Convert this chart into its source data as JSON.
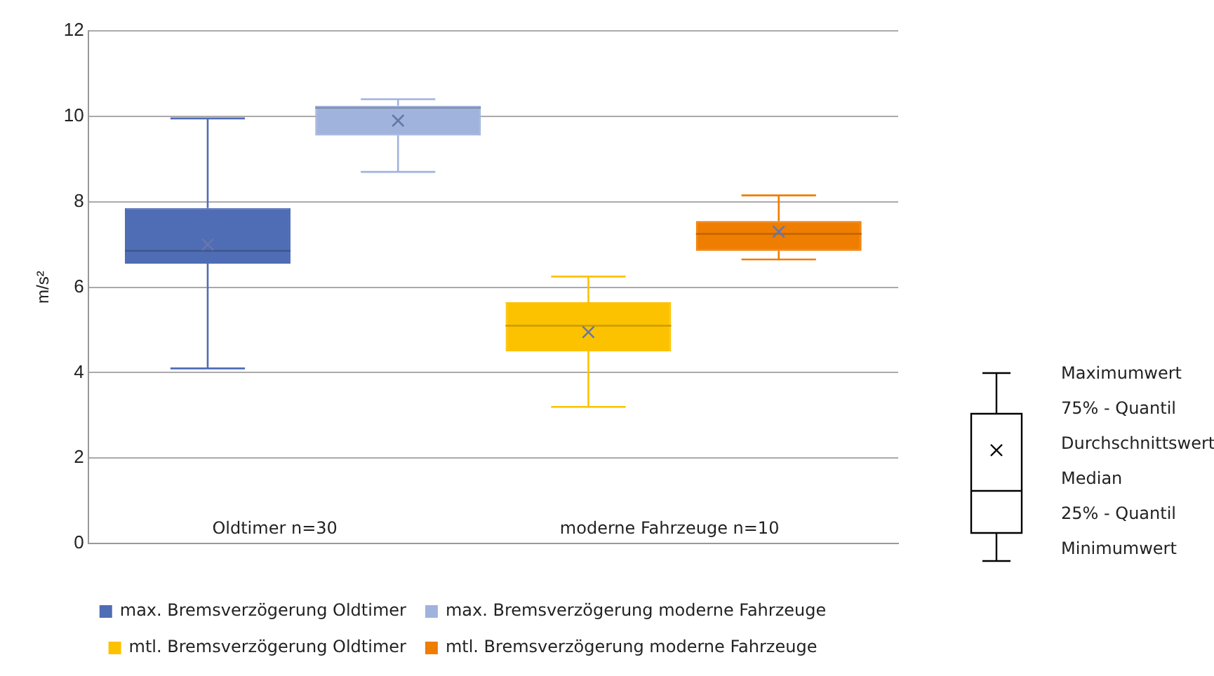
{
  "chart_data": {
    "type": "box",
    "ylabel": "m/s²",
    "categories": [
      null
    ],
    "ylim": [
      0,
      12
    ],
    "yticks": [
      0,
      2,
      4,
      6,
      8,
      10,
      12
    ],
    "grid": "y",
    "legend": "bottom",
    "series": [
      {
        "name": "max. Bremsverzögerung Oldtimer",
        "color": "#4f6db5",
        "boxes": [
          {
            "low": 4.1,
            "q1": 6.55,
            "median": 6.85,
            "q3": 7.85,
            "high": 9.95,
            "mean": 7.0
          }
        ]
      },
      {
        "name": "max. Bremsverzögerung moderne Fahrzeuge",
        "color": "#a0b3dc",
        "boxes": [
          {
            "low": 8.7,
            "q1": 9.55,
            "median": 10.2,
            "q3": 10.25,
            "high": 10.4,
            "mean": 9.9
          }
        ]
      },
      {
        "name": "mtl. Bremsverzögerung Oldtimer",
        "color": "#fcc200",
        "boxes": [
          {
            "low": 3.2,
            "q1": 4.5,
            "median": 5.1,
            "q3": 5.65,
            "high": 6.25,
            "mean": 4.95
          }
        ]
      },
      {
        "name": "mtl. Bremsverzögerung moderne Fahrzeuge",
        "color": "#ef7d00",
        "boxes": [
          {
            "low": 6.65,
            "q1": 6.85,
            "median": 7.25,
            "q3": 7.55,
            "high": 8.15,
            "mean": 7.3
          }
        ]
      }
    ],
    "annotations": [
      "Oldtimer n=30",
      "moderne Fahrzeuge n=10",
      "Maximumwert",
      "75% - Quantil",
      "Durchschnittswert",
      "Median",
      "25% - Quantil",
      "Minimumwert"
    ]
  }
}
